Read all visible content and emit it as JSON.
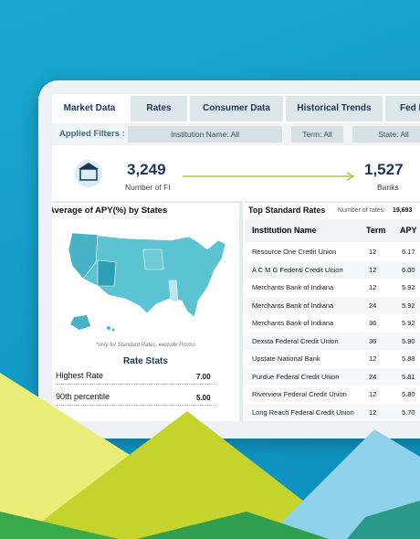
{
  "tabs": [
    "Market Data",
    "Rates",
    "Consumer Data",
    "Historical Trends",
    "Fed F"
  ],
  "filters": {
    "label": "Applied Filters :",
    "items": [
      "Institution Name: All",
      "Term: All",
      "State: All"
    ]
  },
  "stats": [
    {
      "value": "3,249",
      "label": "Number of FI"
    },
    {
      "value": "1,527",
      "label": "Banks"
    }
  ],
  "map_panel": {
    "title": "Average of APY(%) by States",
    "note": "*only for Standard Rates, exclude Promo",
    "stats_title": "Rate Stats",
    "rows": [
      [
        "Highest Rate",
        "7.00"
      ],
      [
        "90th percentile",
        "5.00"
      ]
    ]
  },
  "table": {
    "title": "Top Standard Rates",
    "count_label": "Number of rates:",
    "count": "19,693",
    "headers": [
      "Institution Name",
      "Term",
      "APY"
    ],
    "rows": [
      [
        "Resource One Credit Union",
        "12",
        "6.17"
      ],
      [
        "A C M G Federal Credit Union",
        "12",
        "6.00"
      ],
      [
        "Merchants Bank of Indiana",
        "12",
        "5.92"
      ],
      [
        "Merchants Bank of Indiana",
        "24",
        "5.92"
      ],
      [
        "Merchants Bank of Indiana",
        "36",
        "5.92"
      ],
      [
        "Dexsta Federal Credit Union",
        "36",
        "5.90"
      ],
      [
        "Upstate National Bank",
        "12",
        "5.88"
      ],
      [
        "Purdue Federal Credit Union",
        "24",
        "5.81"
      ],
      [
        "Riverview Federal Credit Union",
        "12",
        "5.80"
      ],
      [
        "Long Reach Federal Credit Union",
        "12",
        "5.70"
      ]
    ]
  }
}
